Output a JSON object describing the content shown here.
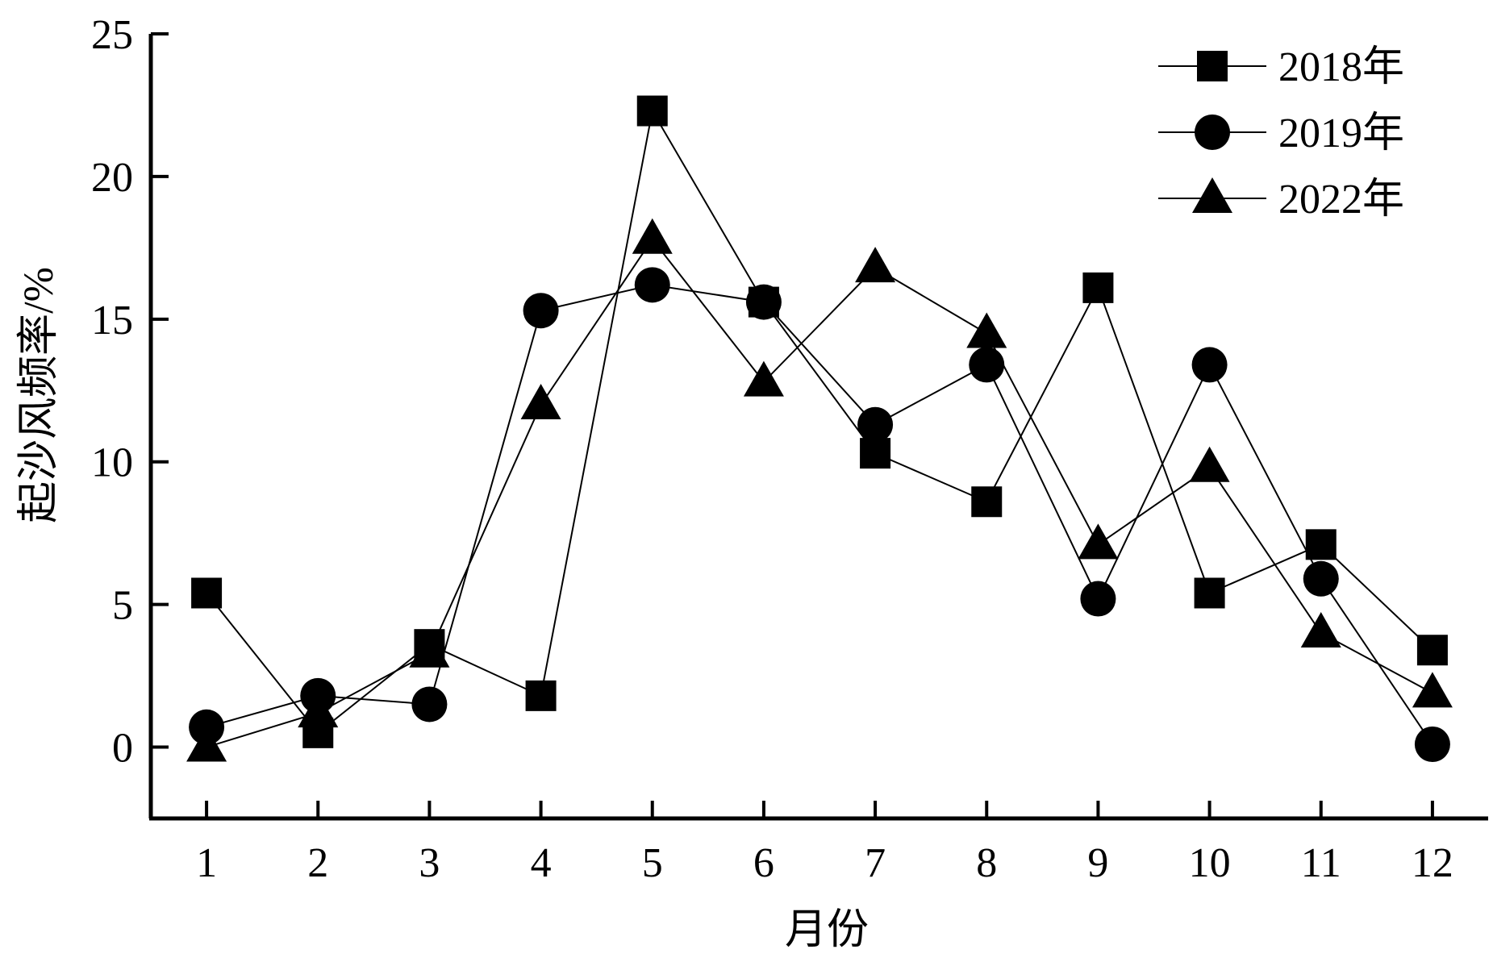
{
  "chart_data": {
    "type": "line",
    "xlabel": "月份",
    "ylabel": "起沙风频率/%",
    "categories": [
      "1",
      "2",
      "3",
      "4",
      "5",
      "6",
      "7",
      "8",
      "9",
      "10",
      "11",
      "12"
    ],
    "x": [
      1,
      2,
      3,
      4,
      5,
      6,
      7,
      8,
      9,
      10,
      11,
      12
    ],
    "ylim": [
      -2.5,
      25
    ],
    "xlim": [
      0.5,
      12.5
    ],
    "yticks": [
      0,
      5,
      10,
      15,
      20,
      25
    ],
    "ytick_labels": [
      "0",
      "5",
      "10",
      "15",
      "20",
      "25"
    ],
    "grid": false,
    "legend_position": "top-right",
    "series": [
      {
        "name": "2018年",
        "marker": "square",
        "values": [
          5.4,
          0.5,
          3.6,
          1.8,
          22.3,
          15.6,
          10.3,
          8.6,
          16.1,
          5.4,
          7.1,
          3.4
        ]
      },
      {
        "name": "2019年",
        "marker": "circle",
        "values": [
          0.7,
          1.8,
          1.5,
          15.3,
          16.2,
          15.6,
          11.3,
          13.4,
          5.2,
          13.4,
          5.9,
          0.1
        ]
      },
      {
        "name": "2022年",
        "marker": "triangle",
        "values": [
          0.0,
          1.2,
          3.3,
          12.0,
          17.8,
          12.8,
          16.8,
          14.5,
          7.1,
          9.8,
          4.0,
          1.9
        ]
      }
    ],
    "color": "#000000"
  }
}
